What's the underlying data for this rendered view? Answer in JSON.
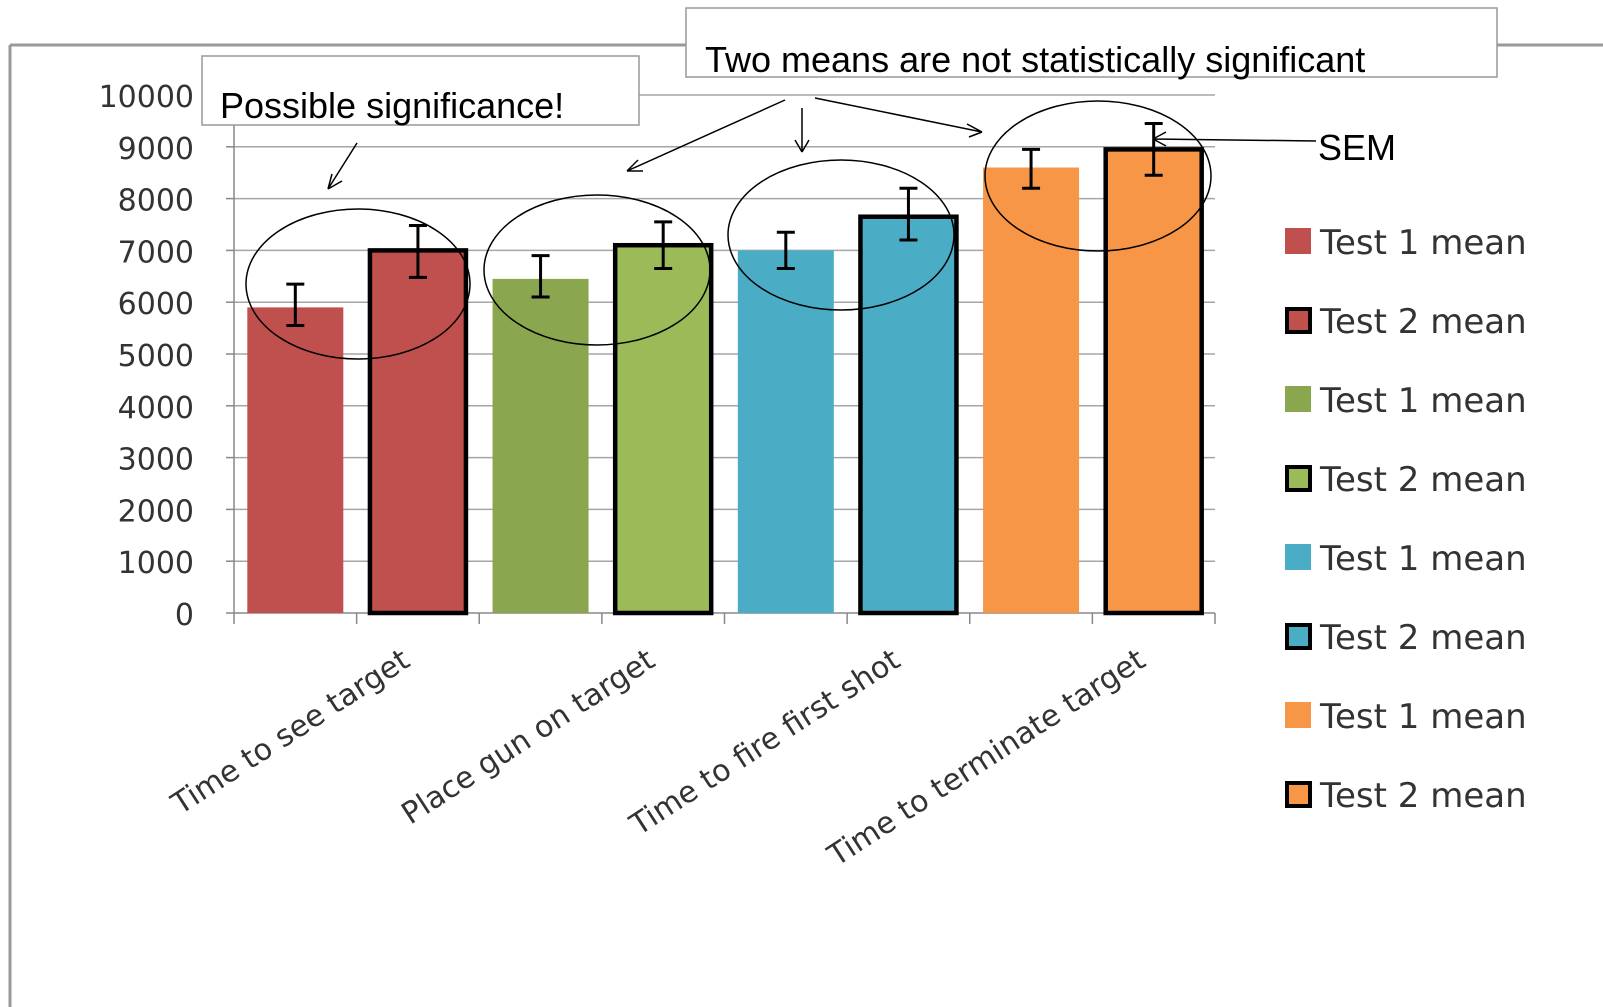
{
  "chart_data": {
    "type": "bar",
    "categories": [
      "Time to see target",
      "Place gun on target",
      "Time to fire first shot",
      "Time to terminate target"
    ],
    "bars": [
      {
        "category": "Time to see target",
        "test": "Test 1 mean",
        "value": 5900,
        "sem_low": 5550,
        "sem_high": 6350,
        "color": "#c0504d",
        "outlined": false
      },
      {
        "category": "Time to see target",
        "test": "Test 2 mean",
        "value": 7000,
        "sem_low": 6480,
        "sem_high": 7480,
        "color": "#c0504d",
        "outlined": true
      },
      {
        "category": "Place gun on target",
        "test": "Test 1 mean",
        "value": 6450,
        "sem_low": 6100,
        "sem_high": 6900,
        "color": "#8aa64f",
        "outlined": false
      },
      {
        "category": "Place gun on target",
        "test": "Test 2 mean",
        "value": 7100,
        "sem_low": 6650,
        "sem_high": 7550,
        "color": "#9bbb59",
        "outlined": true
      },
      {
        "category": "Time to fire first shot",
        "test": "Test 1 mean",
        "value": 7000,
        "sem_low": 6650,
        "sem_high": 7350,
        "color": "#4bacc6",
        "outlined": false
      },
      {
        "category": "Time to fire first shot",
        "test": "Test 2 mean",
        "value": 7650,
        "sem_low": 7200,
        "sem_high": 8200,
        "color": "#4bacc6",
        "outlined": true
      },
      {
        "category": "Time to terminate target",
        "test": "Test 1 mean",
        "value": 8600,
        "sem_low": 8200,
        "sem_high": 8950,
        "color": "#f79646",
        "outlined": false
      },
      {
        "category": "Time to terminate target",
        "test": "Test 2 mean",
        "value": 8950,
        "sem_low": 8450,
        "sem_high": 9450,
        "color": "#f79646",
        "outlined": true
      }
    ],
    "yticks": [
      0,
      1000,
      2000,
      3000,
      4000,
      5000,
      6000,
      7000,
      8000,
      9000,
      10000
    ],
    "ylim": [
      0,
      10000
    ],
    "grid": true,
    "legend_position": "right",
    "legend": [
      {
        "label": "Test 1 mean",
        "color": "#c0504d",
        "outlined": false
      },
      {
        "label": "Test 2 mean",
        "color": "#c0504d",
        "outlined": true
      },
      {
        "label": "Test 1 mean",
        "color": "#8aa64f",
        "outlined": false
      },
      {
        "label": "Test 2 mean",
        "color": "#9bbb59",
        "outlined": true
      },
      {
        "label": "Test 1 mean",
        "color": "#4bacc6",
        "outlined": false
      },
      {
        "label": "Test 2 mean",
        "color": "#4bacc6",
        "outlined": true
      },
      {
        "label": "Test 1 mean",
        "color": "#f79646",
        "outlined": false
      },
      {
        "label": "Test 2 mean",
        "color": "#f79646",
        "outlined": true
      }
    ],
    "annotations": {
      "possible": "Possible significance!",
      "not_significant": "Two means are not statistically significant",
      "sem": "SEM"
    },
    "error_bars": "SEM"
  }
}
